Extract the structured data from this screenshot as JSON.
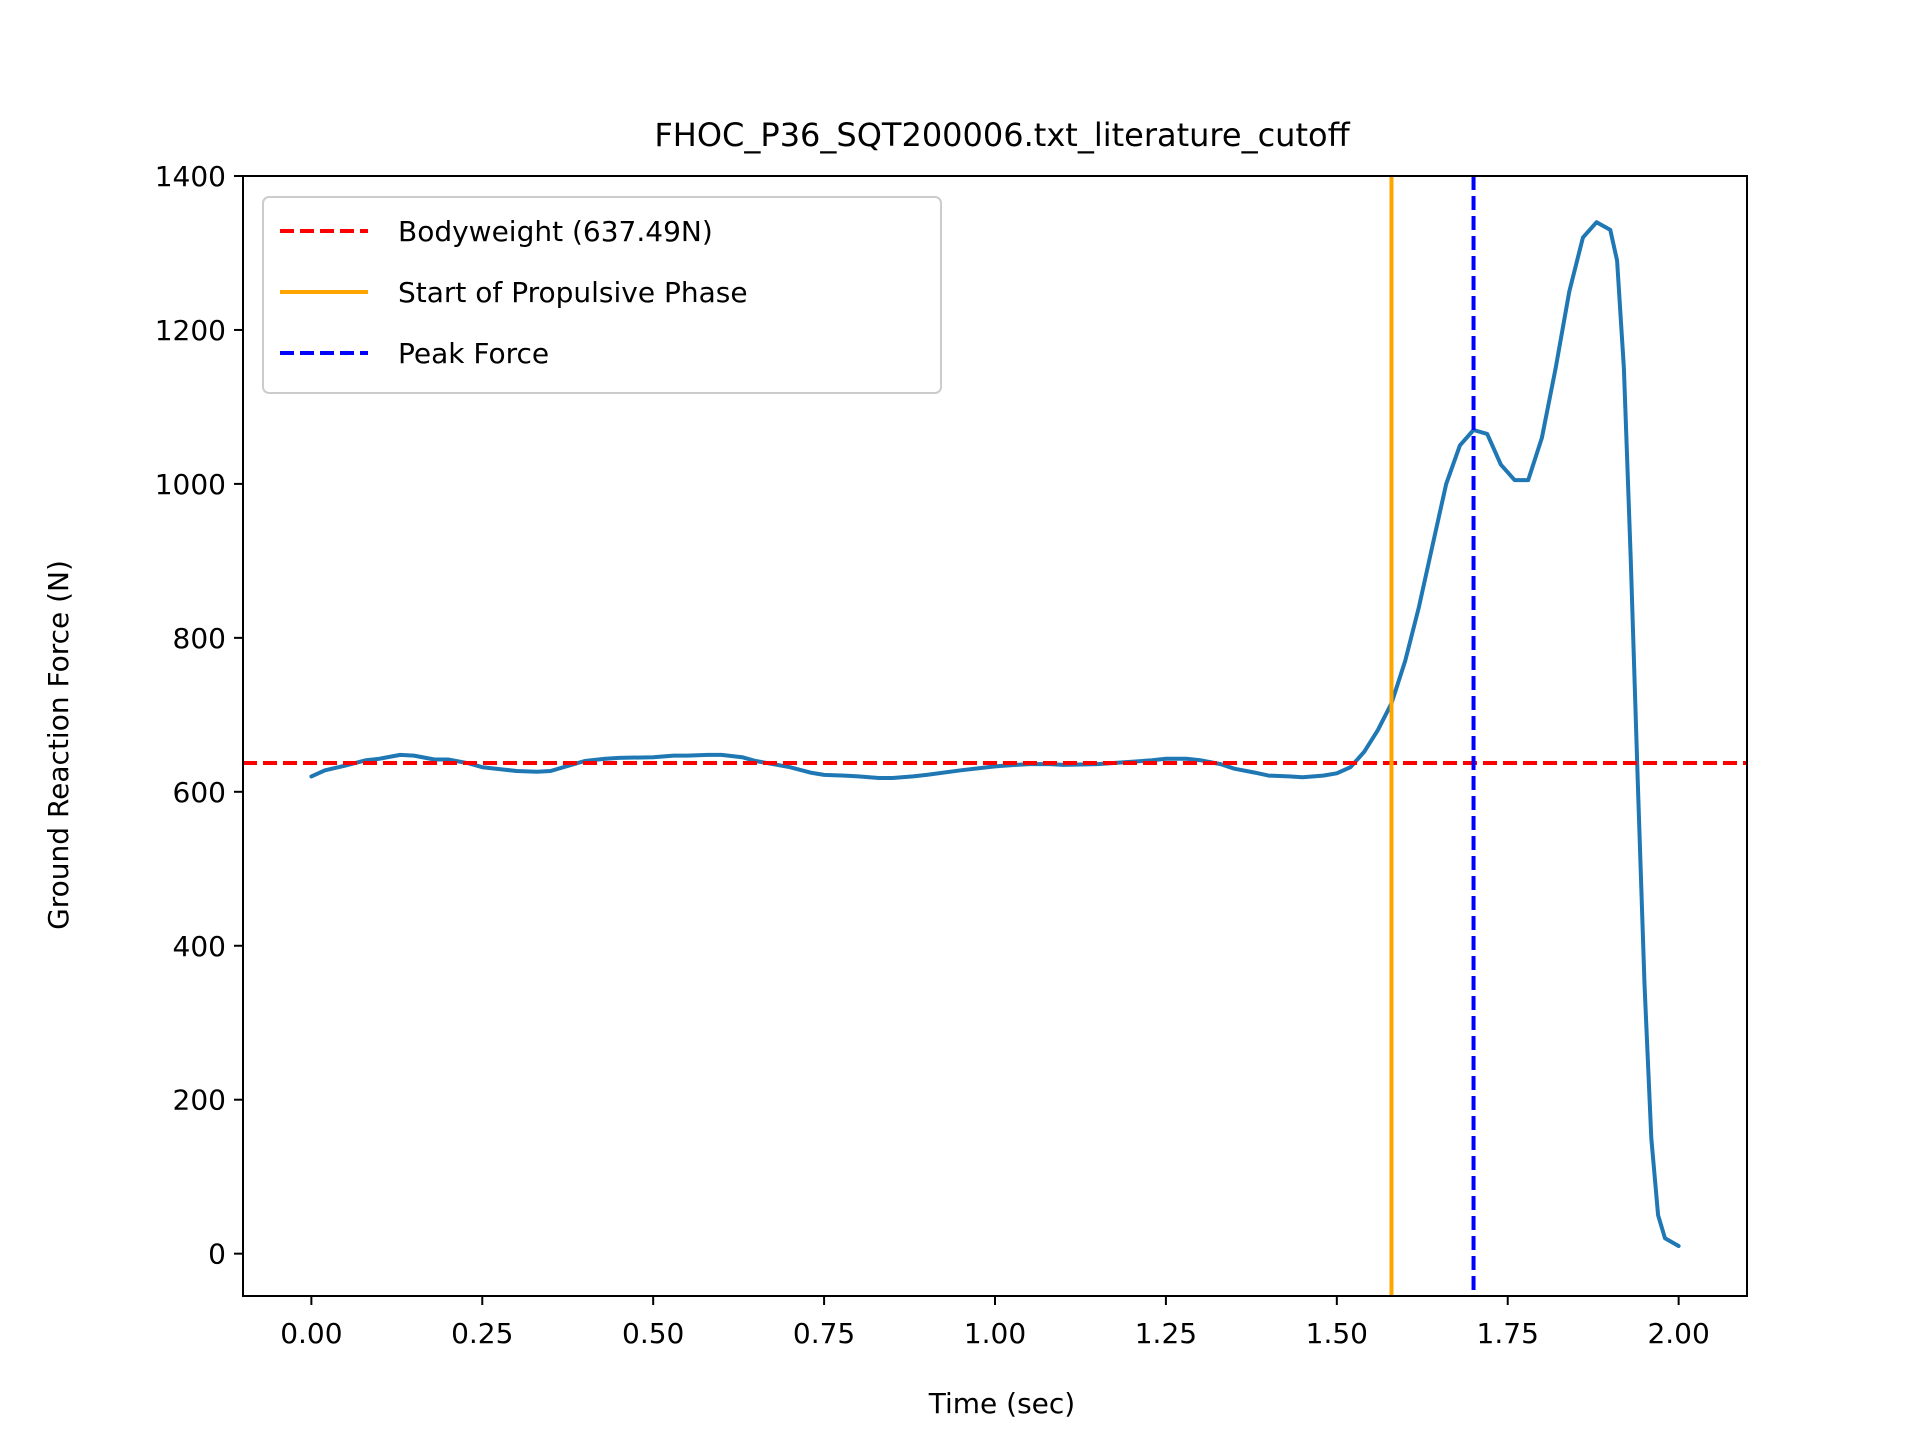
{
  "chart_data": {
    "type": "line",
    "title": "FHOC_P36_SQT200006.txt_literature_cutoff",
    "xlabel": "Time (sec)",
    "ylabel": "Ground Reaction Force (N)",
    "xlim": [
      -0.1,
      2.1
    ],
    "ylim": [
      -55,
      1400
    ],
    "xticks": [
      0.0,
      0.25,
      0.5,
      0.75,
      1.0,
      1.25,
      1.5,
      1.75,
      2.0
    ],
    "xtick_labels": [
      "0.00",
      "0.25",
      "0.50",
      "0.75",
      "1.00",
      "1.25",
      "1.50",
      "1.75",
      "2.00"
    ],
    "yticks": [
      0,
      200,
      400,
      600,
      800,
      1000,
      1200,
      1400
    ],
    "ytick_labels": [
      "0",
      "200",
      "400",
      "600",
      "800",
      "1000",
      "1200",
      "1400"
    ],
    "grid": false,
    "legend_position": "upper-left",
    "series": [
      {
        "color": "#1f77b4",
        "x": [
          0.0,
          0.02,
          0.05,
          0.08,
          0.1,
          0.13,
          0.15,
          0.18,
          0.2,
          0.23,
          0.25,
          0.28,
          0.3,
          0.33,
          0.35,
          0.38,
          0.4,
          0.43,
          0.45,
          0.5,
          0.53,
          0.55,
          0.58,
          0.6,
          0.63,
          0.65,
          0.7,
          0.73,
          0.75,
          0.78,
          0.8,
          0.83,
          0.85,
          0.88,
          0.9,
          0.95,
          1.0,
          1.03,
          1.05,
          1.08,
          1.1,
          1.15,
          1.2,
          1.23,
          1.25,
          1.28,
          1.3,
          1.33,
          1.35,
          1.38,
          1.4,
          1.43,
          1.45,
          1.48,
          1.5,
          1.52,
          1.54,
          1.56,
          1.58,
          1.6,
          1.62,
          1.64,
          1.66,
          1.68,
          1.7,
          1.72,
          1.74,
          1.76,
          1.78,
          1.8,
          1.82,
          1.84,
          1.86,
          1.88,
          1.9,
          1.91,
          1.92,
          1.93,
          1.94,
          1.95,
          1.96,
          1.97,
          1.98,
          1.99,
          2.0
        ],
        "y": [
          620,
          628,
          634,
          641,
          643,
          648,
          647,
          642,
          642,
          637,
          632,
          629,
          627,
          626,
          627,
          635,
          640,
          643,
          644,
          645,
          647,
          647,
          648,
          648,
          645,
          640,
          632,
          625,
          622,
          621,
          620,
          618,
          618,
          620,
          622,
          628,
          633,
          635,
          636,
          636,
          635,
          636,
          639,
          641,
          643,
          643,
          641,
          636,
          630,
          625,
          621,
          620,
          619,
          621,
          624,
          632,
          652,
          680,
          715,
          770,
          840,
          920,
          1000,
          1050,
          1070,
          1065,
          1025,
          1005,
          1005,
          1060,
          1150,
          1250,
          1320,
          1340,
          1330,
          1290,
          1150,
          900,
          620,
          350,
          150,
          50,
          20,
          15,
          10
        ]
      }
    ],
    "reference_lines": [
      {
        "orientation": "horizontal",
        "value": 637.49,
        "color": "#ff0000",
        "style": "dashed",
        "label": "Bodyweight (637.49N)"
      },
      {
        "orientation": "vertical",
        "value": 1.58,
        "color": "#ffa500",
        "style": "solid",
        "label": "Start of Propulsive Phase"
      },
      {
        "orientation": "vertical",
        "value": 1.7,
        "color": "#0000ff",
        "style": "dashed",
        "label": "Peak Force"
      }
    ]
  }
}
